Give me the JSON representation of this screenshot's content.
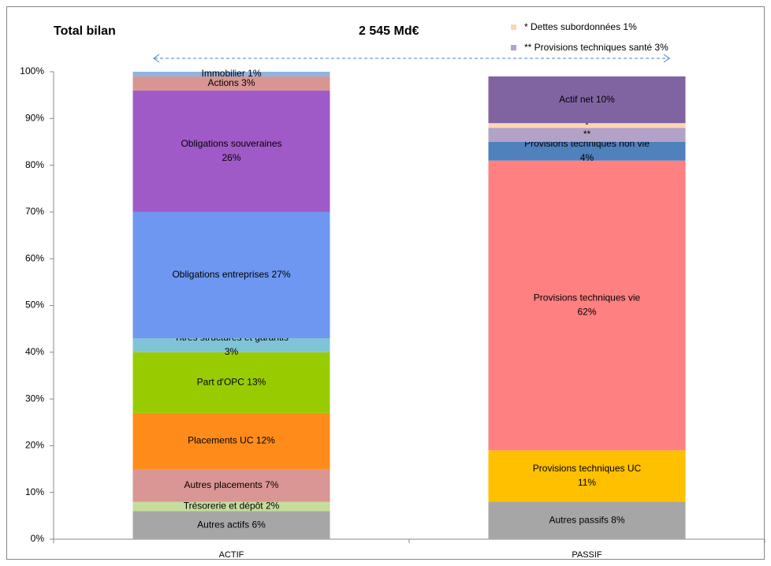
{
  "chart_data": {
    "type": "stacked_bar",
    "title": "Total bilan",
    "subtitle": "2 545 Md€",
    "categories": [
      "ACTIF",
      "PASSIF"
    ],
    "ylim": [
      0,
      100
    ],
    "yticks": [
      {
        "value": 0,
        "label": "0%"
      },
      {
        "value": 10,
        "label": "10%"
      },
      {
        "value": 20,
        "label": "20%"
      },
      {
        "value": 30,
        "label": "30%"
      },
      {
        "value": 40,
        "label": "40%"
      },
      {
        "value": 50,
        "label": "50%"
      },
      {
        "value": 60,
        "label": "60%"
      },
      {
        "value": 70,
        "label": "70%"
      },
      {
        "value": 80,
        "label": "80%"
      },
      {
        "value": 90,
        "label": "90%"
      },
      {
        "value": 100,
        "label": "100%"
      }
    ],
    "legend": [
      {
        "label": "* Dettes subordonnées 1%",
        "color": "#fcd5b5"
      },
      {
        "label": "** Provisions techniques santé 3%",
        "color": "#b3a2c7"
      }
    ],
    "stacks": [
      {
        "segments": [
          {
            "label": [
              "Autres actifs 6%"
            ],
            "value": 6,
            "color": "#a6a6a6"
          },
          {
            "label": [
              "Trésorerie et dépôt 2%"
            ],
            "value": 2,
            "color": "#c4dd9b"
          },
          {
            "label": [
              "Autres placements 7%"
            ],
            "value": 7,
            "color": "#da9694"
          },
          {
            "label": [
              "Placements UC 12%"
            ],
            "value": 12,
            "color": "#ff8c1a"
          },
          {
            "label": [
              "Part d'OPC 13%"
            ],
            "value": 13,
            "color": "#99cc00"
          },
          {
            "label": [
              "Titres structurés et garantis",
              "3%"
            ],
            "value": 3,
            "color": "#7fc4d6"
          },
          {
            "label": [
              "Obligations entreprises 27%"
            ],
            "value": 27,
            "color": "#6d97f0"
          },
          {
            "label": [
              "Obligations souveraines",
              "26%"
            ],
            "value": 26,
            "color": "#a05ac7"
          },
          {
            "label": [
              "Actions 3%"
            ],
            "value": 3,
            "color": "#d99591"
          },
          {
            "label": [
              "Immobilier 1%"
            ],
            "value": 1,
            "color": "#8db4e2"
          }
        ]
      },
      {
        "segments": [
          {
            "label": [
              "Autres passifs 8%"
            ],
            "value": 8,
            "color": "#a6a6a6"
          },
          {
            "label": [
              "Provisions techniques UC",
              "11%"
            ],
            "value": 11,
            "color": "#ffc000"
          },
          {
            "label": [
              "Provisions techniques vie",
              "62%"
            ],
            "value": 62,
            "color": "#ff8080"
          },
          {
            "label": [
              "Provisions techniques non vie",
              "4%"
            ],
            "value": 4,
            "color": "#4f81bd"
          },
          {
            "label": [
              "**"
            ],
            "value": 3,
            "color": "#b3a2c7"
          },
          {
            "label": [
              "*"
            ],
            "value": 1,
            "color": "#fcd5b5"
          },
          {
            "label": [
              "Actif net 10%"
            ],
            "value": 10,
            "color": "#8064a2"
          }
        ]
      }
    ]
  }
}
